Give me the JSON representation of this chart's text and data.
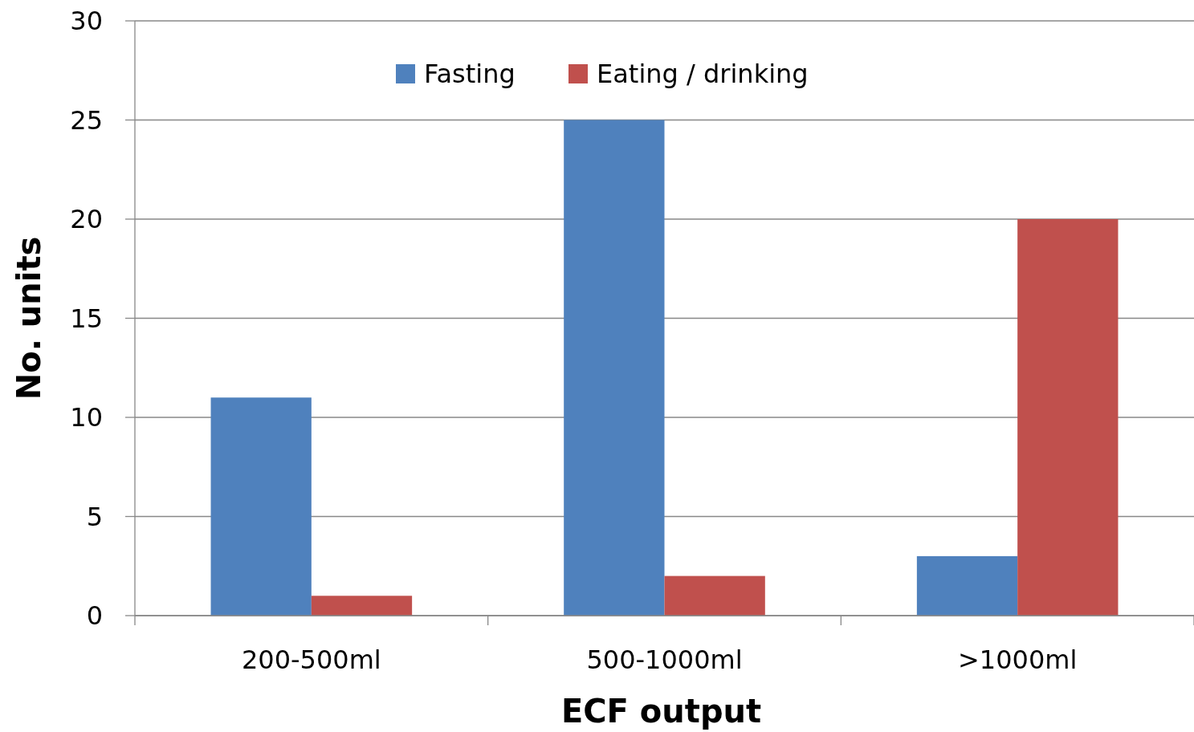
{
  "chart_data": {
    "type": "bar",
    "xlabel": "ECF output",
    "ylabel": "No. units",
    "categories": [
      "200-500ml",
      "500-1000ml",
      ">1000ml"
    ],
    "series": [
      {
        "name": "Fasting",
        "color": "#4f81bd",
        "values": [
          11,
          25,
          3
        ]
      },
      {
        "name": "Eating / drinking",
        "color": "#c0504d",
        "values": [
          1,
          2,
          20
        ]
      }
    ],
    "ylim": [
      0,
      30
    ],
    "yticks": [
      0,
      5,
      10,
      15,
      20,
      25,
      30
    ],
    "grid": "y",
    "legend": "top"
  }
}
